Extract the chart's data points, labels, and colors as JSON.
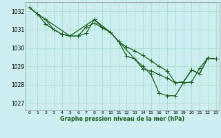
{
  "background_color": "#cceef0",
  "grid_color": "#aaddcc",
  "line_color": "#1a5c1a",
  "xlabel": "Graphe pression niveau de la mer (hPa)",
  "xlim": [
    -0.5,
    23.5
  ],
  "ylim": [
    1026.6,
    1032.5
  ],
  "yticks": [
    1027,
    1028,
    1029,
    1030,
    1031,
    1032
  ],
  "xticks": [
    0,
    1,
    2,
    3,
    4,
    5,
    6,
    7,
    8,
    9,
    10,
    11,
    12,
    13,
    14,
    15,
    16,
    17,
    18,
    19,
    20,
    21,
    22,
    23
  ],
  "series1_x": [
    0,
    1,
    2,
    3,
    4,
    5,
    6,
    7,
    8,
    9,
    10,
    11,
    12,
    13,
    14,
    15,
    16,
    17,
    18,
    19,
    20,
    21,
    22,
    23
  ],
  "series1_y": [
    1032.2,
    1031.85,
    1031.55,
    1031.0,
    1030.75,
    1030.65,
    1030.65,
    1031.15,
    1031.35,
    1031.1,
    1030.85,
    1030.35,
    1030.05,
    1029.85,
    1029.6,
    1029.3,
    1029.0,
    1028.75,
    1028.1,
    1028.15,
    1028.8,
    1028.6,
    1029.45,
    1029.4
  ],
  "series2_x": [
    0,
    1,
    2,
    3,
    4,
    5,
    6,
    7,
    8,
    9,
    10,
    11,
    12,
    13,
    14,
    15,
    16,
    17,
    18,
    19,
    20,
    21,
    22,
    23
  ],
  "series2_y": [
    1032.2,
    1031.85,
    1031.3,
    1031.0,
    1030.75,
    1030.65,
    1030.65,
    1030.8,
    1031.55,
    1031.1,
    1030.85,
    1030.35,
    1029.55,
    1029.4,
    1028.85,
    1028.75,
    1028.55,
    1028.35,
    1028.1,
    1028.15,
    1028.8,
    1028.6,
    1029.45,
    1029.4
  ],
  "series3_x": [
    0,
    1,
    5,
    8,
    10,
    13,
    14,
    15,
    16,
    17,
    18,
    19,
    20,
    21,
    22,
    23
  ],
  "series3_y": [
    1032.2,
    1031.85,
    1030.65,
    1031.55,
    1030.85,
    1029.4,
    1029.0,
    1028.55,
    1027.55,
    1027.4,
    1027.4,
    1028.1,
    1028.15,
    1028.9,
    1029.45,
    1029.4
  ]
}
